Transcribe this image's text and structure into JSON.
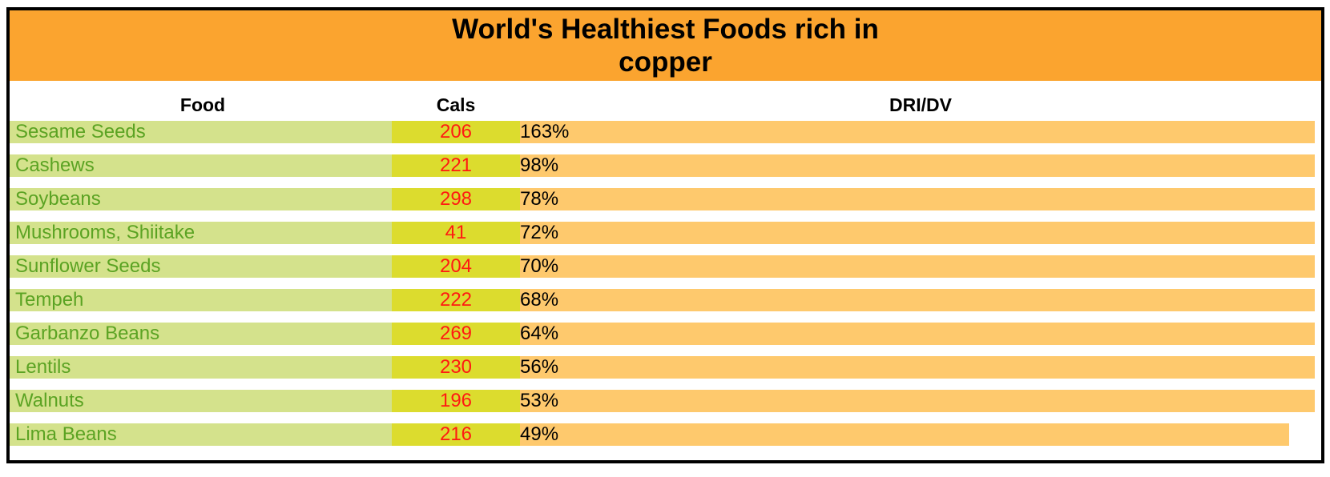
{
  "title": "World's Healthiest Foods rich in copper",
  "colors": {
    "title_bar": "#FBA42F",
    "food_bg": "#D4E28C",
    "food_text": "#5BA323",
    "cals_bg": "#DCDC2E",
    "cals_text": "#FF1A12",
    "dri_bar": "#FEC96D",
    "border": "#000000"
  },
  "headers": {
    "food": "Food",
    "cals": "Cals",
    "dri": "DRI/DV"
  },
  "rows": [
    {
      "food": "Sesame Seeds",
      "cals": "206",
      "dri": "163%",
      "dri_fill": 1.0
    },
    {
      "food": "Cashews",
      "cals": "221",
      "dri": "98%",
      "dri_fill": 1.0
    },
    {
      "food": "Soybeans",
      "cals": "298",
      "dri": "78%",
      "dri_fill": 1.0
    },
    {
      "food": "Mushrooms, Shiitake",
      "cals": "41",
      "dri": "72%",
      "dri_fill": 1.0
    },
    {
      "food": "Sunflower Seeds",
      "cals": "204",
      "dri": "70%",
      "dri_fill": 1.0
    },
    {
      "food": "Tempeh",
      "cals": "222",
      "dri": "68%",
      "dri_fill": 1.0
    },
    {
      "food": "Garbanzo Beans",
      "cals": "269",
      "dri": "64%",
      "dri_fill": 1.0
    },
    {
      "food": "Lentils",
      "cals": "230",
      "dri": "56%",
      "dri_fill": 1.0
    },
    {
      "food": "Walnuts",
      "cals": "196",
      "dri": "53%",
      "dri_fill": 1.0
    },
    {
      "food": "Lima Beans",
      "cals": "216",
      "dri": "49%",
      "dri_fill": 0.968
    }
  ]
}
